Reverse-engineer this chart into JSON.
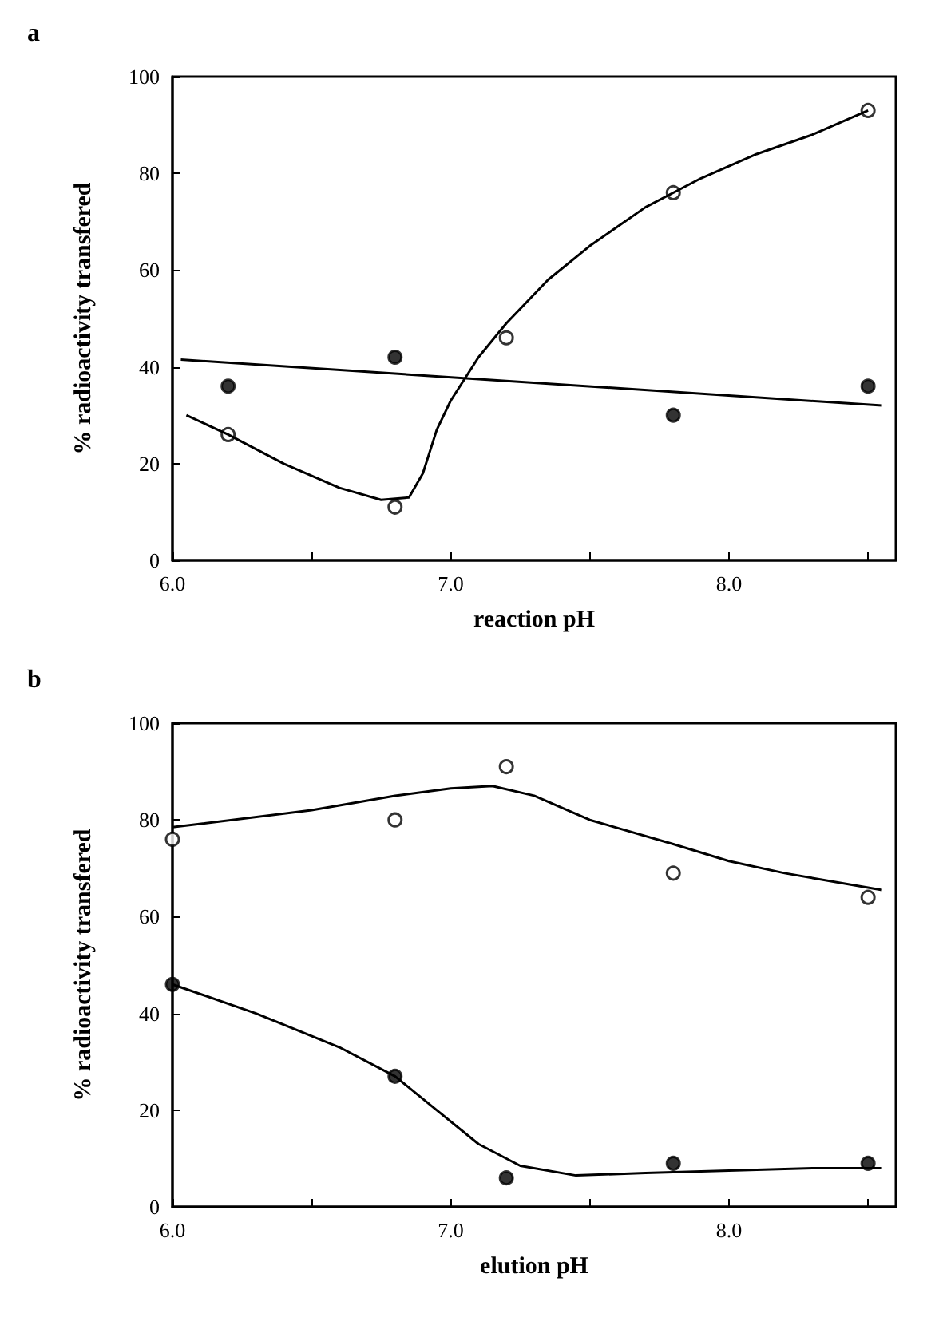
{
  "chart_data": [
    {
      "type": "scatter",
      "title": "a",
      "xlabel": "reaction pH",
      "ylabel": "% radioactivity transfered",
      "xlim": [
        6.0,
        8.6
      ],
      "xticks": [
        {
          "value": 6,
          "label": "6.0"
        },
        {
          "value": 6.5,
          "label": null
        },
        {
          "value": 7,
          "label": "7.0"
        },
        {
          "value": 7.5,
          "label": null
        },
        {
          "value": 8,
          "label": "8.0"
        },
        {
          "value": 8.5,
          "label": null
        }
      ],
      "ylim": [
        0,
        100
      ],
      "yticks": [
        0,
        20,
        40,
        60,
        80,
        100
      ],
      "series": [
        {
          "marker": "circle",
          "color": "#ffffff",
          "x": [
            6.2,
            6.8,
            7.2,
            7.8,
            8.5
          ],
          "values": [
            26,
            11,
            46,
            76,
            93
          ]
        },
        {
          "marker": "circle",
          "color": "#000000",
          "x": [
            6.2,
            6.8,
            7.8,
            8.5
          ],
          "values": [
            36,
            42,
            30,
            36
          ]
        },
        {
          "type": "line",
          "marker": "none",
          "color": "#000000",
          "x": [
            6.03,
            8.55
          ],
          "values": [
            41.5,
            32
          ]
        },
        {
          "type": "line",
          "marker": "none",
          "color": "#000000",
          "x": [
            6.05,
            6.2,
            6.4,
            6.6,
            6.75,
            6.85,
            6.9,
            6.95,
            7.0,
            7.1,
            7.2,
            7.35,
            7.5,
            7.7,
            7.9,
            8.1,
            8.3,
            8.5
          ],
          "values": [
            30,
            26,
            20,
            15,
            12.5,
            13,
            18,
            27,
            33,
            42,
            49,
            58,
            65,
            73,
            79,
            84,
            88,
            93
          ]
        }
      ]
    },
    {
      "type": "scatter",
      "title": "b",
      "xlabel": "elution pH",
      "ylabel": "% radioactivity transfered",
      "xlim": [
        6.0,
        8.6
      ],
      "xticks": [
        {
          "value": 6,
          "label": "6.0"
        },
        {
          "value": 6.5,
          "label": null
        },
        {
          "value": 7,
          "label": "7.0"
        },
        {
          "value": 7.5,
          "label": null
        },
        {
          "value": 8,
          "label": "8.0"
        },
        {
          "value": 8.5,
          "label": null
        }
      ],
      "ylim": [
        0,
        100
      ],
      "yticks": [
        0,
        20,
        40,
        60,
        80,
        100
      ],
      "series": [
        {
          "marker": "circle",
          "color": "#ffffff",
          "x": [
            6.0,
            6.8,
            7.2,
            7.8,
            8.5
          ],
          "values": [
            76,
            80,
            91,
            69,
            64
          ]
        },
        {
          "marker": "circle",
          "color": "#000000",
          "x": [
            6.0,
            6.8,
            7.2,
            7.8,
            8.5
          ],
          "values": [
            46,
            27,
            6,
            9,
            9
          ]
        },
        {
          "type": "line",
          "marker": "none",
          "color": "#000000",
          "x": [
            6.0,
            6.5,
            6.8,
            7.0,
            7.15,
            7.3,
            7.5,
            7.8,
            8.0,
            8.2,
            8.5,
            8.55
          ],
          "values": [
            78.5,
            82,
            85,
            86.5,
            87,
            85,
            80,
            75,
            71.5,
            69,
            66,
            65.5
          ]
        },
        {
          "type": "line",
          "marker": "none",
          "color": "#000000",
          "x": [
            6.0,
            6.3,
            6.6,
            6.8,
            6.95,
            7.1,
            7.25,
            7.45,
            7.7,
            8.0,
            8.3,
            8.55
          ],
          "values": [
            46,
            40,
            33,
            27,
            20,
            13,
            8.5,
            6.5,
            7,
            7.5,
            8,
            8
          ]
        }
      ]
    }
  ]
}
